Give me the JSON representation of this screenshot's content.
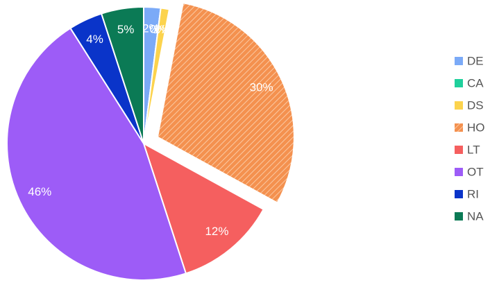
{
  "chart_data": {
    "type": "pie",
    "categories": [
      "DE",
      "CA",
      "DS",
      "HO",
      "LT",
      "OT",
      "RI",
      "NA"
    ],
    "values": [
      2,
      0,
      1,
      30,
      12,
      46,
      4,
      5
    ],
    "value_labels": [
      "2%",
      "0%",
      "1%",
      "30%",
      "12%",
      "46%",
      "4%",
      "5%"
    ],
    "colors": [
      "#7baaf7",
      "#1fd09c",
      "#fcd34d",
      "#f4914f",
      "#f55f5f",
      "#9d5cf7",
      "#0a34c9",
      "#0b7a55"
    ],
    "exploded": [
      3
    ],
    "hatched": [
      3
    ],
    "legend": "right"
  }
}
